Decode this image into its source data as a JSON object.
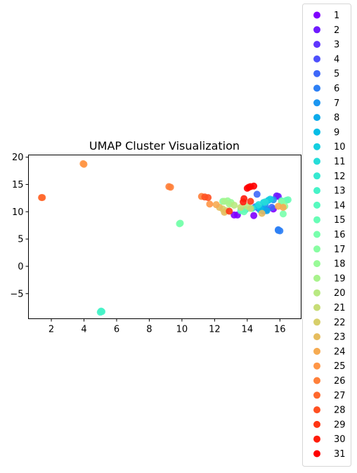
{
  "chart_data": {
    "type": "scatter",
    "title": "UMAP Cluster Visualization",
    "xlabel": "",
    "ylabel": "",
    "xlim": [
      0.6,
      17.3
    ],
    "ylim": [
      -9.6,
      20.4
    ],
    "xticks": [
      2,
      4,
      6,
      8,
      10,
      12,
      14,
      16
    ],
    "yticks": [
      -5,
      0,
      5,
      10,
      15,
      20
    ],
    "grid": false,
    "legend_position": "right",
    "series": [
      {
        "name": "1",
        "color": "#8000ff",
        "points": [
          [
            13.2,
            9.4
          ],
          [
            13.4,
            9.4
          ],
          [
            14.4,
            9.3
          ],
          [
            15.6,
            10.5
          ]
        ]
      },
      {
        "name": "2",
        "color": "#6f1bff",
        "points": [
          [
            15.8,
            12.9
          ],
          [
            15.9,
            12.8
          ]
        ]
      },
      {
        "name": "3",
        "color": "#5f35fe",
        "points": [
          [
            14.7,
            10.6
          ],
          [
            15.2,
            10.4
          ]
        ]
      },
      {
        "name": "4",
        "color": "#4e50fc",
        "points": [
          [
            14.5,
            10.9
          ],
          [
            15.0,
            10.1
          ]
        ]
      },
      {
        "name": "5",
        "color": "#3e68f9",
        "points": [
          [
            14.6,
            13.2
          ],
          [
            15.5,
            10.8
          ]
        ]
      },
      {
        "name": "6",
        "color": "#2d80f5",
        "points": [
          [
            15.9,
            6.6
          ],
          [
            16.0,
            6.5
          ],
          [
            15.9,
            6.7
          ]
        ]
      },
      {
        "name": "7",
        "color": "#1c96f1",
        "points": [
          [
            15.1,
            11.3
          ],
          [
            15.6,
            12.2
          ]
        ]
      },
      {
        "name": "8",
        "color": "#0cabeb",
        "points": [
          [
            15.2,
            10.2
          ],
          [
            14.9,
            10.6
          ]
        ]
      },
      {
        "name": "9",
        "color": "#05bde6",
        "points": [
          [
            14.8,
            10.3
          ],
          [
            15.3,
            12.1
          ]
        ]
      },
      {
        "name": "10",
        "color": "#15cfe0",
        "points": [
          [
            15.0,
            11.7
          ],
          [
            14.6,
            11.0
          ],
          [
            15.4,
            12.3
          ]
        ]
      },
      {
        "name": "11",
        "color": "#26ddd9",
        "points": [
          [
            14.7,
            11.3
          ],
          [
            15.1,
            11.8
          ]
        ]
      },
      {
        "name": "12",
        "color": "#36e9d1",
        "points": [
          [
            14.3,
            10.6
          ],
          [
            13.9,
            10.4
          ]
        ]
      },
      {
        "name": "13",
        "color": "#46f3c8",
        "points": [
          [
            5.0,
            -8.4
          ],
          [
            5.1,
            -8.3
          ],
          [
            5.05,
            -8.2
          ]
        ]
      },
      {
        "name": "14",
        "color": "#57fabf",
        "points": [
          [
            16.1,
            12.0
          ],
          [
            13.6,
            10.2
          ]
        ]
      },
      {
        "name": "15",
        "color": "#67fdb6",
        "points": [
          [
            16.5,
            12.2
          ],
          [
            16.4,
            12.1
          ],
          [
            13.8,
            10.0
          ]
        ]
      },
      {
        "name": "16",
        "color": "#78ffac",
        "points": [
          [
            9.9,
            7.9
          ],
          [
            9.85,
            7.8
          ],
          [
            16.2,
            9.6
          ]
        ]
      },
      {
        "name": "17",
        "color": "#88fda2",
        "points": [
          [
            16.1,
            11.8
          ],
          [
            12.5,
            11.9
          ]
        ]
      },
      {
        "name": "18",
        "color": "#98fa97",
        "points": [
          [
            13.0,
            11.7
          ],
          [
            12.8,
            12.0
          ],
          [
            16.3,
            11.0
          ]
        ]
      },
      {
        "name": "19",
        "color": "#a8f38c",
        "points": [
          [
            12.6,
            11.9
          ],
          [
            12.9,
            11.4
          ]
        ]
      },
      {
        "name": "20",
        "color": "#b8e981",
        "points": [
          [
            13.2,
            11.2
          ],
          [
            14.0,
            11.0
          ]
        ]
      },
      {
        "name": "21",
        "color": "#c7dd76",
        "points": [
          [
            13.6,
            10.8
          ],
          [
            14.2,
            10.6
          ]
        ]
      },
      {
        "name": "22",
        "color": "#d7cf6a",
        "points": [
          [
            12.5,
            10.5
          ],
          [
            12.7,
            10.2
          ]
        ]
      },
      {
        "name": "23",
        "color": "#e6bd5e",
        "points": [
          [
            12.3,
            10.8
          ],
          [
            12.6,
            9.9
          ],
          [
            14.9,
            9.7
          ]
        ]
      },
      {
        "name": "24",
        "color": "#f6ab52",
        "points": [
          [
            12.1,
            11.3
          ],
          [
            15.9,
            11.0
          ],
          [
            16.2,
            10.8
          ]
        ]
      },
      {
        "name": "25",
        "color": "#ff9646",
        "points": [
          [
            3.95,
            18.8
          ],
          [
            4.0,
            18.7
          ],
          [
            11.7,
            11.4
          ]
        ]
      },
      {
        "name": "26",
        "color": "#ff803a",
        "points": [
          [
            9.2,
            14.6
          ],
          [
            9.3,
            14.5
          ],
          [
            11.2,
            12.8
          ]
        ]
      },
      {
        "name": "27",
        "color": "#ff682d",
        "points": [
          [
            1.4,
            12.6
          ],
          [
            1.45,
            12.6
          ]
        ]
      },
      {
        "name": "28",
        "color": "#ff5021",
        "points": [
          [
            11.4,
            12.7
          ],
          [
            11.6,
            12.6
          ]
        ]
      },
      {
        "name": "29",
        "color": "#ff3514",
        "points": [
          [
            14.2,
            11.9
          ],
          [
            12.9,
            10.1
          ]
        ]
      },
      {
        "name": "30",
        "color": "#ff1b0a",
        "points": [
          [
            13.8,
            12.4
          ],
          [
            13.75,
            11.8
          ]
        ]
      },
      {
        "name": "31",
        "color": "#ff0000",
        "points": [
          [
            14.0,
            14.3
          ],
          [
            14.2,
            14.6
          ],
          [
            14.4,
            14.7
          ],
          [
            14.1,
            14.5
          ]
        ]
      }
    ]
  }
}
